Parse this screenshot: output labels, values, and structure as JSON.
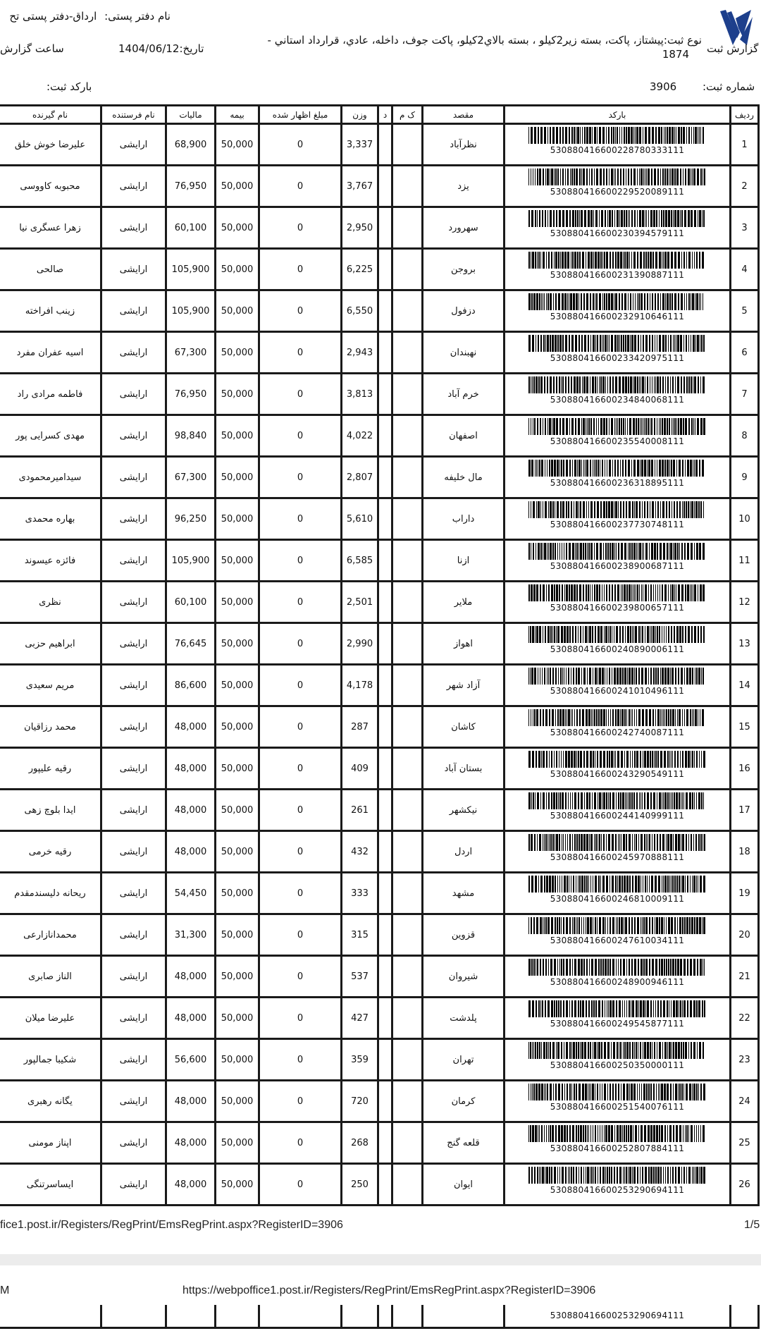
{
  "header": {
    "report_title": "گزارش ثبت",
    "office_label": "نام دفتر پستی:",
    "office_value": "ارداق-دفتر پستی تح",
    "type_text": "نوع ثبت:پیشتاز، پاکت، بسته زیر2کیلو ، بسته بالاي2کيلو، پاکت جوف، داخله، عادي، قرارداد استاني -",
    "type_text_line2": "1874",
    "date_text": "تاریخ:1404/06/12",
    "time_label": "ساعت گزارش",
    "register_number_label": "شماره ثبت:",
    "register_number_value": "3906",
    "register_barcode_label": "بارکد ثبت:"
  },
  "logo": {
    "name": "post-logo-icon",
    "color": "#1d3f8c"
  },
  "table": {
    "columns": [
      "ردیف",
      "بارکد",
      "مقصد",
      "ک م",
      "د",
      "وزن",
      "مبلغ اظهار شده",
      "بیمه",
      "مالیات",
      "نام فرستنده",
      "نام گیرنده"
    ],
    "rows": [
      {
        "n": "1",
        "barcode": "5308804166002287803331​11",
        "dest": "نظرآباد",
        "km": "",
        "d": "",
        "weight": "3,337",
        "declared": "0",
        "insurance": "50,000",
        "tax": "68,900",
        "sender": "ارایشی",
        "receiver": "علیرضا خوش خلق"
      },
      {
        "n": "2",
        "barcode": "530880416600229520089111",
        "dest": "یزد",
        "km": "",
        "d": "",
        "weight": "3,767",
        "declared": "0",
        "insurance": "50,000",
        "tax": "76,950",
        "sender": "ارایشی",
        "receiver": "محبوبه کاووسی"
      },
      {
        "n": "3",
        "barcode": "530880416600230394579111",
        "dest": "سهرورد",
        "km": "",
        "d": "",
        "weight": "2,950",
        "declared": "0",
        "insurance": "50,000",
        "tax": "60,100",
        "sender": "ارایشی",
        "receiver": "زهرا عسگری نیا"
      },
      {
        "n": "4",
        "barcode": "530880416600231390887111",
        "dest": "بروجن",
        "km": "",
        "d": "",
        "weight": "6,225",
        "declared": "0",
        "insurance": "50,000",
        "tax": "105,900",
        "sender": "ارایشی",
        "receiver": "صالحی"
      },
      {
        "n": "5",
        "barcode": "530880416600232910646111",
        "dest": "دزفول",
        "km": "",
        "d": "",
        "weight": "6,550",
        "declared": "0",
        "insurance": "50,000",
        "tax": "105,900",
        "sender": "ارایشی",
        "receiver": "زینب افراخته"
      },
      {
        "n": "6",
        "barcode": "530880416600233420975111",
        "dest": "نهبندان",
        "km": "",
        "d": "",
        "weight": "2,943",
        "declared": "0",
        "insurance": "50,000",
        "tax": "67,300",
        "sender": "ارایشی",
        "receiver": "اسیه عفران مفرد"
      },
      {
        "n": "7",
        "barcode": "530880416600234840068111",
        "dest": "خرم آباد",
        "km": "",
        "d": "",
        "weight": "3,813",
        "declared": "0",
        "insurance": "50,000",
        "tax": "76,950",
        "sender": "ارایشی",
        "receiver": "فاطمه مرادی راد"
      },
      {
        "n": "8",
        "barcode": "530880416600235540008111",
        "dest": "اصفهان",
        "km": "",
        "d": "",
        "weight": "4,022",
        "declared": "0",
        "insurance": "50,000",
        "tax": "98,840",
        "sender": "ارایشی",
        "receiver": "مهدی کسرایی پور"
      },
      {
        "n": "9",
        "barcode": "530880416600236318895111",
        "dest": "مال خلیفه",
        "km": "",
        "d": "",
        "weight": "2,807",
        "declared": "0",
        "insurance": "50,000",
        "tax": "67,300",
        "sender": "ارایشی",
        "receiver": "سیدامیرمحمودی"
      },
      {
        "n": "10",
        "barcode": "530880416600237730748111",
        "dest": "داراب",
        "km": "",
        "d": "",
        "weight": "5,610",
        "declared": "0",
        "insurance": "50,000",
        "tax": "96,250",
        "sender": "ارایشی",
        "receiver": "بهاره محمدی"
      },
      {
        "n": "11",
        "barcode": "530880416600238900687111",
        "dest": "ازنا",
        "km": "",
        "d": "",
        "weight": "6,585",
        "declared": "0",
        "insurance": "50,000",
        "tax": "105,900",
        "sender": "ارایشی",
        "receiver": "فائزه عیسوند"
      },
      {
        "n": "12",
        "barcode": "530880416600239800657111",
        "dest": "ملایر",
        "km": "",
        "d": "",
        "weight": "2,501",
        "declared": "0",
        "insurance": "50,000",
        "tax": "60,100",
        "sender": "ارایشی",
        "receiver": "نظری"
      },
      {
        "n": "13",
        "barcode": "530880416600240890006111",
        "dest": "اهواز",
        "km": "",
        "d": "",
        "weight": "2,990",
        "declared": "0",
        "insurance": "50,000",
        "tax": "76,645",
        "sender": "ارایشی",
        "receiver": "ابراهیم حزبی"
      },
      {
        "n": "14",
        "barcode": "530880416600241010496111",
        "dest": "آزاد شهر",
        "km": "",
        "d": "",
        "weight": "4,178",
        "declared": "0",
        "insurance": "50,000",
        "tax": "86,600",
        "sender": "ارایشی",
        "receiver": "مریم سعیدی"
      },
      {
        "n": "15",
        "barcode": "530880416600242740087111",
        "dest": "کاشان",
        "km": "",
        "d": "",
        "weight": "287",
        "declared": "0",
        "insurance": "50,000",
        "tax": "48,000",
        "sender": "ارایشی",
        "receiver": "محمد رزاقیان"
      },
      {
        "n": "16",
        "barcode": "530880416600243290549111",
        "dest": "بستان آباد",
        "km": "",
        "d": "",
        "weight": "409",
        "declared": "0",
        "insurance": "50,000",
        "tax": "48,000",
        "sender": "ارایشی",
        "receiver": "رقیه علیپور"
      },
      {
        "n": "17",
        "barcode": "530880416600244140999111",
        "dest": "نیکشهر",
        "km": "",
        "d": "",
        "weight": "261",
        "declared": "0",
        "insurance": "50,000",
        "tax": "48,000",
        "sender": "ارایشی",
        "receiver": "ایدا بلوچ زهی"
      },
      {
        "n": "18",
        "barcode": "530880416600245970888111",
        "dest": "اردل",
        "km": "",
        "d": "",
        "weight": "432",
        "declared": "0",
        "insurance": "50,000",
        "tax": "48,000",
        "sender": "ارایشی",
        "receiver": "رقیه خرمی"
      },
      {
        "n": "19",
        "barcode": "530880416600246810009111",
        "dest": "مشهد",
        "km": "",
        "d": "",
        "weight": "333",
        "declared": "0",
        "insurance": "50,000",
        "tax": "54,450",
        "sender": "ارایشی",
        "receiver": "ریحانه دلیسندمقدم"
      },
      {
        "n": "20",
        "barcode": "530880416600247610034111",
        "dest": "قزوین",
        "km": "",
        "d": "",
        "weight": "315",
        "declared": "0",
        "insurance": "50,000",
        "tax": "31,300",
        "sender": "ارایشی",
        "receiver": "محمدانازارعی"
      },
      {
        "n": "21",
        "barcode": "530880416600248900946111",
        "dest": "شیروان",
        "km": "",
        "d": "",
        "weight": "537",
        "declared": "0",
        "insurance": "50,000",
        "tax": "48,000",
        "sender": "ارایشی",
        "receiver": "الناز صابری"
      },
      {
        "n": "22",
        "barcode": "530880416600249545877111",
        "dest": "پلدشت",
        "km": "",
        "d": "",
        "weight": "427",
        "declared": "0",
        "insurance": "50,000",
        "tax": "48,000",
        "sender": "ارایشی",
        "receiver": "علیرضا میلان"
      },
      {
        "n": "23",
        "barcode": "530880416600250350000111",
        "dest": "تهران",
        "km": "",
        "d": "",
        "weight": "359",
        "declared": "0",
        "insurance": "50,000",
        "tax": "56,600",
        "sender": "ارایشی",
        "receiver": "شکیبا جمالپور"
      },
      {
        "n": "24",
        "barcode": "530880416600251540076111",
        "dest": "کرمان",
        "km": "",
        "d": "",
        "weight": "720",
        "declared": "0",
        "insurance": "50,000",
        "tax": "48,000",
        "sender": "ارایشی",
        "receiver": "یگانه رهبری"
      },
      {
        "n": "25",
        "barcode": "530880416600252807884111",
        "dest": "قلعه گنج",
        "km": "",
        "d": "",
        "weight": "268",
        "declared": "0",
        "insurance": "50,000",
        "tax": "48,000",
        "sender": "ارایشی",
        "receiver": "اپناز مومنی"
      },
      {
        "n": "26",
        "barcode": "530880416600253290694111",
        "dest": "ایوان",
        "km": "",
        "d": "",
        "weight": "250",
        "declared": "0",
        "insurance": "50,000",
        "tax": "48,000",
        "sender": "ارایشی",
        "receiver": "ایساسرتنگی"
      }
    ]
  },
  "footer": {
    "url_page1": "fice1.post.ir/Registers/RegPrint/EmsRegPrint.aspx?RegisterID=3906",
    "page_indicator": "1/5",
    "page2_left": "M",
    "url_page2": "https://webpoffice1.post.ir/Registers/RegPrint/EmsRegPrint.aspx?RegisterID=3906"
  }
}
